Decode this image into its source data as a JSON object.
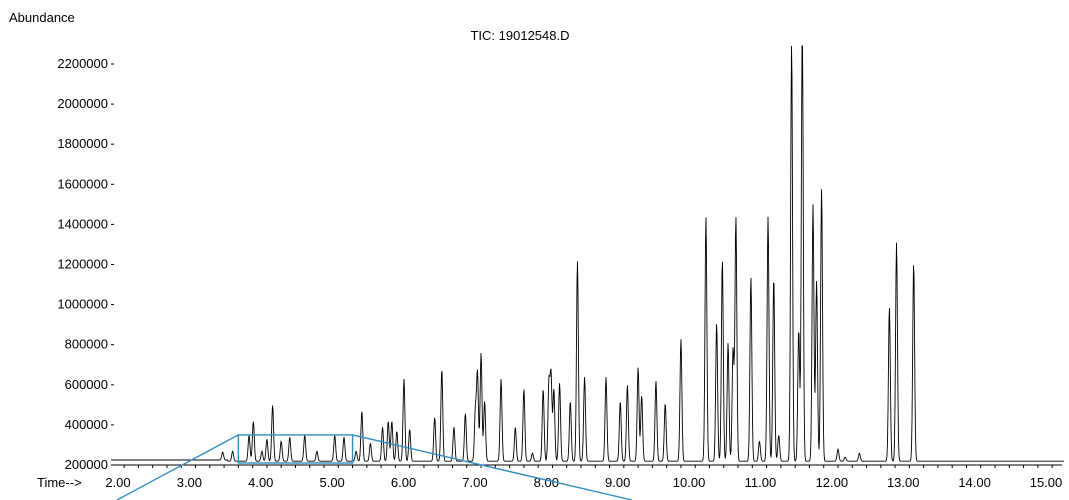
{
  "chart_data": {
    "type": "line",
    "title": "TIC: 19012548.D",
    "ylabel": "Abundance",
    "xlabel": "Time-->",
    "xlim": [
      1.97,
      15.55
    ],
    "ylim": [
      0,
      2280000
    ],
    "x_ticks": [
      2,
      3,
      4,
      5,
      6,
      7,
      8,
      9,
      10,
      11,
      12,
      13,
      14,
      15
    ],
    "x_tick_labels": [
      "2.00",
      "3.00",
      "4.00",
      "5.00",
      "6.00",
      "7.00",
      "8.00",
      "9.00",
      "10.00",
      "11.00",
      "12.00",
      "13.00",
      "14.00",
      "15.00"
    ],
    "y_ticks": [
      200000,
      400000,
      600000,
      800000,
      1000000,
      1200000,
      1400000,
      1600000,
      1800000,
      2000000,
      2200000
    ],
    "y_tick_labels": [
      "200000",
      "400000",
      "600000",
      "800000",
      "1000000",
      "1200000",
      "1400000",
      "1600000",
      "1800000",
      "2000000",
      "2200000"
    ],
    "baseline": 10000,
    "series": [
      {
        "peaks": [
          [
            3.48,
            40000
          ],
          [
            3.62,
            50000
          ],
          [
            3.85,
            130000
          ],
          [
            3.91,
            200000
          ],
          [
            4.03,
            50000
          ],
          [
            4.1,
            110000
          ],
          [
            4.18,
            280000
          ],
          [
            4.3,
            100000
          ],
          [
            4.42,
            120000
          ],
          [
            4.63,
            130000
          ],
          [
            4.8,
            50000
          ],
          [
            5.05,
            130000
          ],
          [
            5.18,
            120000
          ],
          [
            5.35,
            50000
          ],
          [
            5.43,
            250000
          ],
          [
            5.55,
            90000
          ],
          [
            5.72,
            170000
          ],
          [
            5.8,
            200000
          ],
          [
            5.85,
            200000
          ],
          [
            5.92,
            150000
          ],
          [
            6.02,
            410000
          ],
          [
            6.1,
            160000
          ],
          [
            6.45,
            220000
          ],
          [
            6.55,
            460000
          ],
          [
            6.72,
            170000
          ],
          [
            6.88,
            240000
          ],
          [
            7.02,
            250000
          ],
          [
            7.05,
            440000
          ],
          [
            7.1,
            540000
          ],
          [
            7.15,
            300000
          ],
          [
            7.38,
            410000
          ],
          [
            7.58,
            170000
          ],
          [
            7.7,
            360000
          ],
          [
            7.82,
            40000
          ],
          [
            7.97,
            360000
          ],
          [
            8.05,
            390000
          ],
          [
            8.08,
            430000
          ],
          [
            8.12,
            360000
          ],
          [
            8.2,
            390000
          ],
          [
            8.35,
            300000
          ],
          [
            8.45,
            1000000
          ],
          [
            8.55,
            420000
          ],
          [
            8.85,
            420000
          ],
          [
            9.05,
            300000
          ],
          [
            9.15,
            380000
          ],
          [
            9.3,
            470000
          ],
          [
            9.35,
            330000
          ],
          [
            9.55,
            400000
          ],
          [
            9.68,
            290000
          ],
          [
            9.9,
            610000
          ],
          [
            10.25,
            1220000
          ],
          [
            10.4,
            690000
          ],
          [
            10.48,
            1010000
          ],
          [
            10.56,
            590000
          ],
          [
            10.63,
            560000
          ],
          [
            10.67,
            1220000
          ],
          [
            10.88,
            920000
          ],
          [
            11.0,
            100000
          ],
          [
            11.12,
            1220000
          ],
          [
            11.2,
            920000
          ],
          [
            11.27,
            130000
          ],
          [
            11.45,
            2120000
          ],
          [
            11.55,
            660000
          ],
          [
            11.6,
            2270000
          ],
          [
            11.75,
            1280000
          ],
          [
            11.8,
            900000
          ],
          [
            11.87,
            1360000
          ],
          [
            12.1,
            60000
          ],
          [
            12.2,
            20000
          ],
          [
            12.4,
            40000
          ],
          [
            12.82,
            770000
          ],
          [
            12.92,
            1090000
          ],
          [
            13.16,
            990000
          ]
        ]
      }
    ],
    "inset_zoom": {
      "x_range": [
        3.7,
        5.3
      ],
      "y_max": 350000,
      "color": "#2f8fc4"
    }
  }
}
